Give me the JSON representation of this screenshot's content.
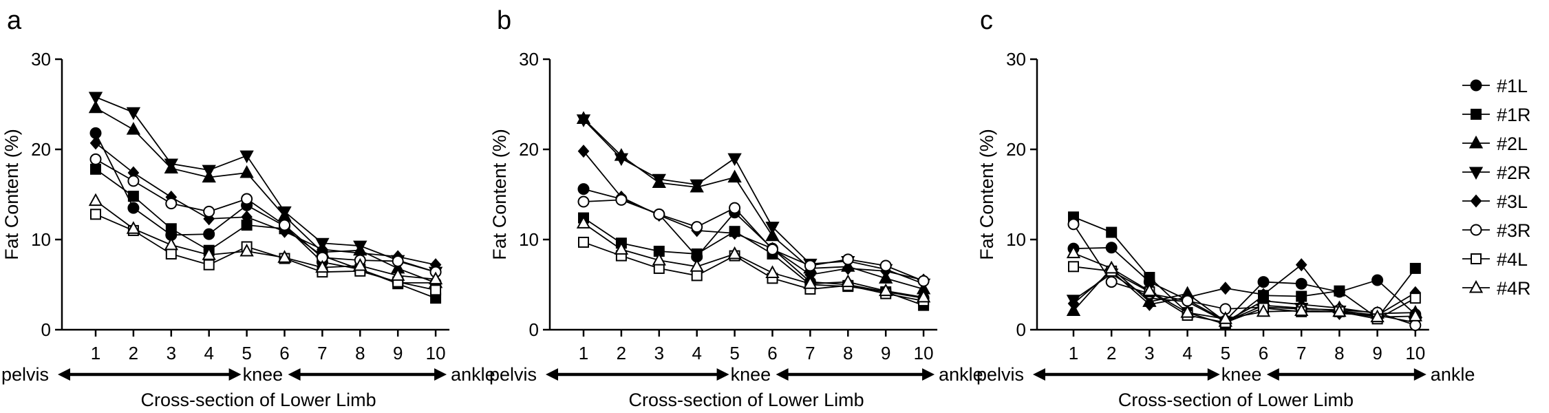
{
  "chart_data": [
    {
      "type": "line",
      "panel": "a",
      "xlabel": "Cross-section of Lower Limb",
      "ylabel": "Fat Content (%)",
      "ylim": [
        0,
        30
      ],
      "yticks": [
        "0",
        "10",
        "20",
        "30"
      ],
      "x": [
        1,
        2,
        3,
        4,
        5,
        6,
        7,
        8,
        9,
        10
      ],
      "xticks": [
        "1",
        "2",
        "3",
        "4",
        "5",
        "6",
        "7",
        "8",
        "9",
        "10"
      ],
      "anatomy": {
        "start": "pelvis",
        "middle": "knee",
        "end": "ankle"
      },
      "series": [
        {
          "name": "#1L",
          "values": [
            21.8,
            13.5,
            10.5,
            10.6,
            13.8,
            11.5,
            7.5,
            6.7,
            5.2,
            5.2
          ]
        },
        {
          "name": "#1R",
          "values": [
            17.8,
            14.8,
            11.2,
            8.8,
            11.6,
            11.2,
            8.2,
            6.7,
            5.1,
            3.5
          ]
        },
        {
          "name": "#2L",
          "values": [
            24.6,
            22.2,
            17.9,
            16.9,
            17.4,
            12.6,
            8.6,
            8.8,
            6.8,
            5.2
          ]
        },
        {
          "name": "#2R",
          "values": [
            25.8,
            24.1,
            18.4,
            17.7,
            19.3,
            13.1,
            9.6,
            9.3,
            7.7,
            6.4
          ]
        },
        {
          "name": "#3L",
          "values": [
            20.7,
            17.4,
            14.7,
            12.3,
            12.5,
            10.9,
            8.9,
            8.5,
            8.1,
            7.2
          ]
        },
        {
          "name": "#3R",
          "values": [
            18.9,
            16.5,
            14.0,
            13.1,
            14.5,
            11.6,
            8.0,
            7.7,
            7.6,
            6.4
          ]
        },
        {
          "name": "#4L",
          "values": [
            12.8,
            11.0,
            8.4,
            7.2,
            9.2,
            7.9,
            6.4,
            6.5,
            5.3,
            4.4
          ]
        },
        {
          "name": "#4R",
          "values": [
            14.3,
            11.2,
            9.4,
            8.3,
            8.7,
            8.0,
            6.9,
            7.1,
            6.0,
            5.6
          ]
        }
      ]
    },
    {
      "type": "line",
      "panel": "b",
      "xlabel": "Cross-section of Lower Limb",
      "ylabel": "Fat Content (%)",
      "ylim": [
        0,
        30
      ],
      "yticks": [
        "0",
        "10",
        "20",
        "30"
      ],
      "x": [
        1,
        2,
        3,
        4,
        5,
        6,
        7,
        8,
        9,
        10
      ],
      "xticks": [
        "1",
        "2",
        "3",
        "4",
        "5",
        "6",
        "7",
        "8",
        "9",
        "10"
      ],
      "anatomy": {
        "start": "pelvis",
        "middle": "knee",
        "end": "ankle"
      },
      "series": [
        {
          "name": "#1L",
          "values": [
            15.6,
            14.5,
            12.8,
            8.1,
            13.0,
            9.0,
            5.3,
            5.0,
            4.2,
            3.5
          ]
        },
        {
          "name": "#1R",
          "values": [
            12.4,
            9.6,
            8.7,
            8.4,
            10.9,
            8.4,
            5.0,
            4.8,
            4.2,
            2.7
          ]
        },
        {
          "name": "#2L",
          "values": [
            23.4,
            19.3,
            16.3,
            15.8,
            16.9,
            10.4,
            6.8,
            7.0,
            5.7,
            4.5
          ]
        },
        {
          "name": "#2R",
          "values": [
            23.3,
            19.0,
            16.7,
            16.1,
            19.0,
            11.4,
            7.3,
            7.6,
            6.7,
            5.1
          ]
        },
        {
          "name": "#3L",
          "values": [
            19.8,
            14.7,
            12.7,
            11.0,
            10.7,
            9.0,
            6.1,
            6.8,
            6.5,
            5.5
          ]
        },
        {
          "name": "#3R",
          "values": [
            14.2,
            14.4,
            12.8,
            11.4,
            13.5,
            8.9,
            7.1,
            7.8,
            7.1,
            5.4
          ]
        },
        {
          "name": "#4L",
          "values": [
            9.7,
            8.2,
            6.8,
            6.0,
            8.2,
            5.7,
            4.5,
            4.9,
            4.0,
            3.2
          ]
        },
        {
          "name": "#4R",
          "values": [
            11.8,
            8.9,
            7.7,
            7.0,
            8.4,
            6.3,
            5.1,
            5.3,
            4.3,
            3.6
          ]
        }
      ]
    },
    {
      "type": "line",
      "panel": "c",
      "xlabel": "Cross-section of Lower Limb",
      "ylabel": "Fat Content (%)",
      "ylim": [
        0,
        30
      ],
      "yticks": [
        "0",
        "10",
        "20",
        "30"
      ],
      "x": [
        1,
        2,
        3,
        4,
        5,
        6,
        7,
        8,
        9,
        10
      ],
      "xticks": [
        "1",
        "2",
        "3",
        "4",
        "5",
        "6",
        "7",
        "8",
        "9",
        "10"
      ],
      "anatomy": {
        "start": "pelvis",
        "middle": "knee",
        "end": "ankle"
      },
      "series": [
        {
          "name": "#1L",
          "values": [
            9.0,
            9.1,
            5.3,
            3.3,
            1.0,
            5.3,
            5.1,
            4.2,
            5.5,
            1.7
          ]
        },
        {
          "name": "#1R",
          "values": [
            12.5,
            10.8,
            5.8,
            1.9,
            0.6,
            3.8,
            3.7,
            4.3,
            1.3,
            6.8
          ]
        },
        {
          "name": "#2L",
          "values": [
            2.1,
            6.8,
            3.1,
            4.0,
            0.9,
            3.2,
            2.8,
            2.4,
            1.8,
            1.9
          ]
        },
        {
          "name": "#2R",
          "values": [
            3.3,
            6.2,
            3.5,
            3.1,
            0.9,
            2.7,
            2.4,
            2.1,
            1.6,
            0.8
          ]
        },
        {
          "name": "#3L",
          "values": [
            2.9,
            6.5,
            2.8,
            3.6,
            4.6,
            3.9,
            7.2,
            1.8,
            1.6,
            4.1
          ]
        },
        {
          "name": "#3R",
          "values": [
            11.7,
            5.3,
            4.0,
            3.2,
            2.3,
            2.5,
            2.3,
            2.2,
            1.9,
            0.5
          ]
        },
        {
          "name": "#4L",
          "values": [
            7.0,
            6.5,
            4.2,
            1.6,
            0.8,
            2.4,
            2.0,
            2.0,
            1.2,
            3.5
          ]
        },
        {
          "name": "#4R",
          "values": [
            8.5,
            6.8,
            4.3,
            1.9,
            1.2,
            2.0,
            2.1,
            2.0,
            1.4,
            1.5
          ]
        }
      ]
    }
  ],
  "legend": {
    "entries": [
      {
        "name": "#1L",
        "marker": "circle",
        "filled": true
      },
      {
        "name": "#1R",
        "marker": "square",
        "filled": true
      },
      {
        "name": "#2L",
        "marker": "triangle-up",
        "filled": true
      },
      {
        "name": "#2R",
        "marker": "triangle-down",
        "filled": true
      },
      {
        "name": "#3L",
        "marker": "diamond",
        "filled": true
      },
      {
        "name": "#3R",
        "marker": "circle",
        "filled": false
      },
      {
        "name": "#4L",
        "marker": "square",
        "filled": false
      },
      {
        "name": "#4R",
        "marker": "triangle-up",
        "filled": false
      }
    ],
    "placement": "right"
  },
  "colors": {
    "ink": "#000000",
    "background": "#ffffff"
  }
}
